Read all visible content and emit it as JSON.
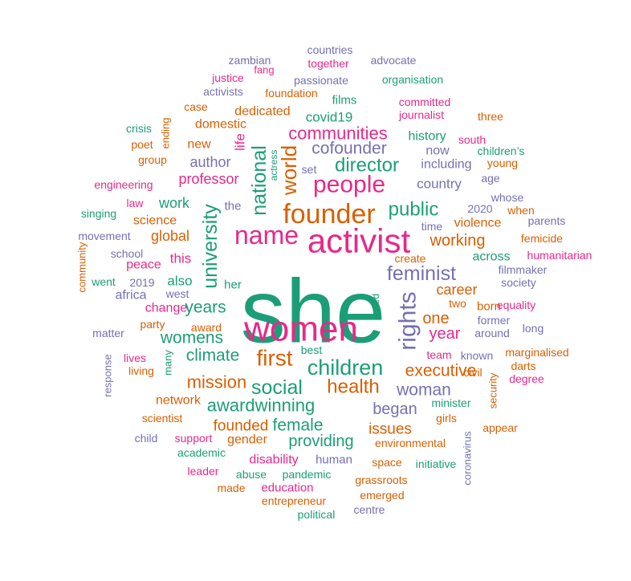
{
  "colors": {
    "teal": "#1b9e77",
    "orange": "#d95f02",
    "purple": "#7570b3",
    "pink": "#e7298a"
  },
  "words": [
    {
      "text": "she",
      "color": "teal"
    },
    {
      "text": "women",
      "color": "pink"
    },
    {
      "text": "activist",
      "color": "pink"
    },
    {
      "text": "founder",
      "color": "orange"
    },
    {
      "text": "name",
      "color": "pink"
    },
    {
      "text": "people",
      "color": "pink"
    },
    {
      "text": "children",
      "color": "teal"
    },
    {
      "text": "rights",
      "color": "purple"
    },
    {
      "text": "first",
      "color": "orange"
    },
    {
      "text": "feminist",
      "color": "purple"
    },
    {
      "text": "university",
      "color": "teal"
    },
    {
      "text": "social",
      "color": "teal"
    },
    {
      "text": "health",
      "color": "orange"
    },
    {
      "text": "director",
      "color": "teal"
    },
    {
      "text": "public",
      "color": "teal"
    },
    {
      "text": "national",
      "color": "teal"
    },
    {
      "text": "world",
      "color": "orange"
    },
    {
      "text": "communities",
      "color": "pink"
    },
    {
      "text": "cofounder",
      "color": "purple"
    },
    {
      "text": "awardwinning",
      "color": "teal"
    },
    {
      "text": "mission",
      "color": "orange"
    },
    {
      "text": "climate",
      "color": "teal"
    },
    {
      "text": "years",
      "color": "teal"
    },
    {
      "text": "womens",
      "color": "teal"
    },
    {
      "text": "executive",
      "color": "orange"
    },
    {
      "text": "woman",
      "color": "purple"
    },
    {
      "text": "began",
      "color": "purple"
    },
    {
      "text": "female",
      "color": "teal"
    },
    {
      "text": "providing",
      "color": "teal"
    },
    {
      "text": "founded",
      "color": "orange"
    },
    {
      "text": "issues",
      "color": "orange"
    },
    {
      "text": "working",
      "color": "orange"
    },
    {
      "text": "one",
      "color": "orange"
    },
    {
      "text": "year",
      "color": "pink"
    },
    {
      "text": "career",
      "color": "orange"
    },
    {
      "text": "professor",
      "color": "pink"
    },
    {
      "text": "author",
      "color": "purple"
    },
    {
      "text": "work",
      "color": "teal"
    },
    {
      "text": "global",
      "color": "orange"
    },
    {
      "text": "covid19",
      "color": "teal"
    },
    {
      "text": "country",
      "color": "purple"
    },
    {
      "text": "history",
      "color": "teal"
    },
    {
      "text": "now",
      "color": "purple"
    },
    {
      "text": "including",
      "color": "purple"
    },
    {
      "text": "violence",
      "color": "orange"
    },
    {
      "text": "across",
      "color": "teal"
    },
    {
      "text": "dedicated",
      "color": "orange"
    },
    {
      "text": "domestic",
      "color": "orange"
    },
    {
      "text": "new",
      "color": "orange"
    },
    {
      "text": "films",
      "color": "teal"
    },
    {
      "text": "life",
      "color": "pink"
    },
    {
      "text": "this",
      "color": "pink"
    },
    {
      "text": "also",
      "color": "teal"
    },
    {
      "text": "change",
      "color": "pink"
    },
    {
      "text": "science",
      "color": "orange"
    },
    {
      "text": "africa",
      "color": "purple"
    },
    {
      "text": "peace",
      "color": "pink"
    },
    {
      "text": "her",
      "color": "teal"
    },
    {
      "text": "the",
      "color": "purple"
    },
    {
      "text": "gender",
      "color": "orange"
    },
    {
      "text": "disability",
      "color": "pink"
    },
    {
      "text": "network",
      "color": "orange"
    },
    {
      "text": "born",
      "color": "orange"
    },
    {
      "text": "2020",
      "color": "purple"
    },
    {
      "text": "time",
      "color": "purple"
    },
    {
      "text": "set",
      "color": "purple"
    },
    {
      "text": "actress",
      "color": "teal"
    },
    {
      "text": "environmental",
      "color": "orange"
    },
    {
      "text": "human",
      "color": "purple"
    },
    {
      "text": "education",
      "color": "pink"
    },
    {
      "text": "foundation",
      "color": "orange"
    },
    {
      "text": "countries",
      "color": "purple"
    },
    {
      "text": "together",
      "color": "pink"
    },
    {
      "text": "advocate",
      "color": "purple"
    },
    {
      "text": "zambian",
      "color": "purple"
    },
    {
      "text": "fang",
      "color": "pink"
    },
    {
      "text": "passionate",
      "color": "purple"
    },
    {
      "text": "organisation",
      "color": "teal"
    },
    {
      "text": "justice",
      "color": "pink"
    },
    {
      "text": "activists",
      "color": "purple"
    },
    {
      "text": "committed",
      "color": "pink"
    },
    {
      "text": "journalist",
      "color": "pink"
    },
    {
      "text": "case",
      "color": "orange"
    },
    {
      "text": "three",
      "color": "orange"
    },
    {
      "text": "ending",
      "color": "orange"
    },
    {
      "text": "crisis",
      "color": "teal"
    },
    {
      "text": "poet",
      "color": "orange"
    },
    {
      "text": "group",
      "color": "orange"
    },
    {
      "text": "south",
      "color": "pink"
    },
    {
      "text": "children’s",
      "color": "teal"
    },
    {
      "text": "young",
      "color": "orange"
    },
    {
      "text": "age",
      "color": "purple"
    },
    {
      "text": "engineering",
      "color": "pink"
    },
    {
      "text": "whose",
      "color": "purple"
    },
    {
      "text": "law",
      "color": "pink"
    },
    {
      "text": "when",
      "color": "orange"
    },
    {
      "text": "singing",
      "color": "teal"
    },
    {
      "text": "parents",
      "color": "purple"
    },
    {
      "text": "movement",
      "color": "purple"
    },
    {
      "text": "femicide",
      "color": "orange"
    },
    {
      "text": "school",
      "color": "purple"
    },
    {
      "text": "create",
      "color": "orange"
    },
    {
      "text": "humanitarian",
      "color": "pink"
    },
    {
      "text": "filmmaker",
      "color": "purple"
    },
    {
      "text": "community",
      "color": "orange"
    },
    {
      "text": "went",
      "color": "teal"
    },
    {
      "text": "2019",
      "color": "purple"
    },
    {
      "text": "society",
      "color": "purple"
    },
    {
      "text": "west",
      "color": "purple"
    },
    {
      "text": "led",
      "color": "teal"
    },
    {
      "text": "equality",
      "color": "pink"
    },
    {
      "text": "two",
      "color": "orange"
    },
    {
      "text": "former",
      "color": "purple"
    },
    {
      "text": "party",
      "color": "orange"
    },
    {
      "text": "matter",
      "color": "purple"
    },
    {
      "text": "award",
      "color": "orange"
    },
    {
      "text": "around",
      "color": "purple"
    },
    {
      "text": "long",
      "color": "purple"
    },
    {
      "text": "best",
      "color": "teal"
    },
    {
      "text": "team",
      "color": "pink"
    },
    {
      "text": "known",
      "color": "purple"
    },
    {
      "text": "marginalised",
      "color": "orange"
    },
    {
      "text": "lives",
      "color": "pink"
    },
    {
      "text": "response",
      "color": "purple"
    },
    {
      "text": "many",
      "color": "teal"
    },
    {
      "text": "living",
      "color": "orange"
    },
    {
      "text": "civil",
      "color": "orange"
    },
    {
      "text": "darts",
      "color": "orange"
    },
    {
      "text": "degree",
      "color": "pink"
    },
    {
      "text": "minister",
      "color": "teal"
    },
    {
      "text": "security",
      "color": "orange"
    },
    {
      "text": "scientist",
      "color": "orange"
    },
    {
      "text": "girls",
      "color": "orange"
    },
    {
      "text": "appear",
      "color": "orange"
    },
    {
      "text": "child",
      "color": "purple"
    },
    {
      "text": "support",
      "color": "pink"
    },
    {
      "text": "coronavirus",
      "color": "purple"
    },
    {
      "text": "academic",
      "color": "teal"
    },
    {
      "text": "space",
      "color": "orange"
    },
    {
      "text": "initiative",
      "color": "teal"
    },
    {
      "text": "leader",
      "color": "pink"
    },
    {
      "text": "abuse",
      "color": "teal"
    },
    {
      "text": "pandemic",
      "color": "teal"
    },
    {
      "text": "grassroots",
      "color": "orange"
    },
    {
      "text": "made",
      "color": "orange"
    },
    {
      "text": "emerged",
      "color": "orange"
    },
    {
      "text": "entrepreneur",
      "color": "orange"
    },
    {
      "text": "centre",
      "color": "purple"
    },
    {
      "text": "political",
      "color": "teal"
    }
  ]
}
